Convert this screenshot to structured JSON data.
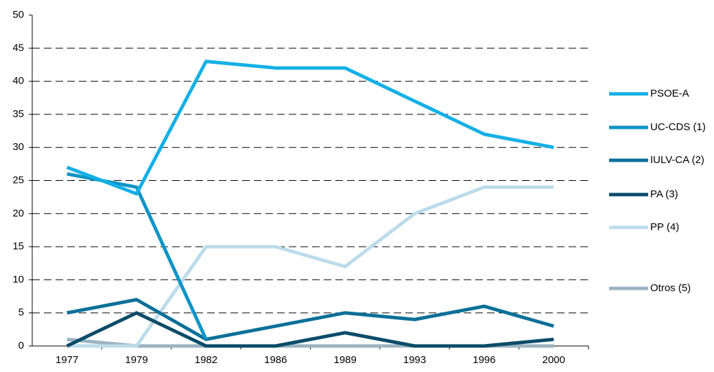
{
  "chart_data": {
    "type": "line",
    "categories": [
      "1977",
      "1979",
      "1982",
      "1986",
      "1989",
      "1993",
      "1996",
      "2000"
    ],
    "series": [
      {
        "name": "PSOE-A",
        "color": "#13b0e6",
        "values": [
          27,
          23,
          43,
          42,
          42,
          37,
          32,
          30
        ]
      },
      {
        "name": "UC-CDS (1)",
        "color": "#0f94c6",
        "values": [
          26,
          24,
          1,
          null,
          null,
          null,
          null,
          null
        ]
      },
      {
        "name": "IULV-CA (2)",
        "color": "#0b7099",
        "values": [
          5,
          7,
          1,
          3,
          5,
          4,
          6,
          3
        ]
      },
      {
        "name": "PA (3)",
        "color": "#0a4c69",
        "values": [
          0,
          5,
          0,
          0,
          2,
          0,
          0,
          1
        ]
      },
      {
        "name": "PP (4)",
        "color": "#bcdcea",
        "values": [
          0,
          0,
          15,
          15,
          12,
          20,
          24,
          24
        ]
      },
      {
        "name": "Otros (5)",
        "color": "#9cb3c1",
        "values": [
          1,
          0,
          0,
          0,
          0,
          0,
          0,
          0
        ]
      }
    ],
    "ylim": [
      0,
      50
    ],
    "yticks": [
      0,
      5,
      10,
      15,
      20,
      25,
      30,
      35,
      40,
      45,
      50
    ],
    "grid": true,
    "legend": "right"
  }
}
